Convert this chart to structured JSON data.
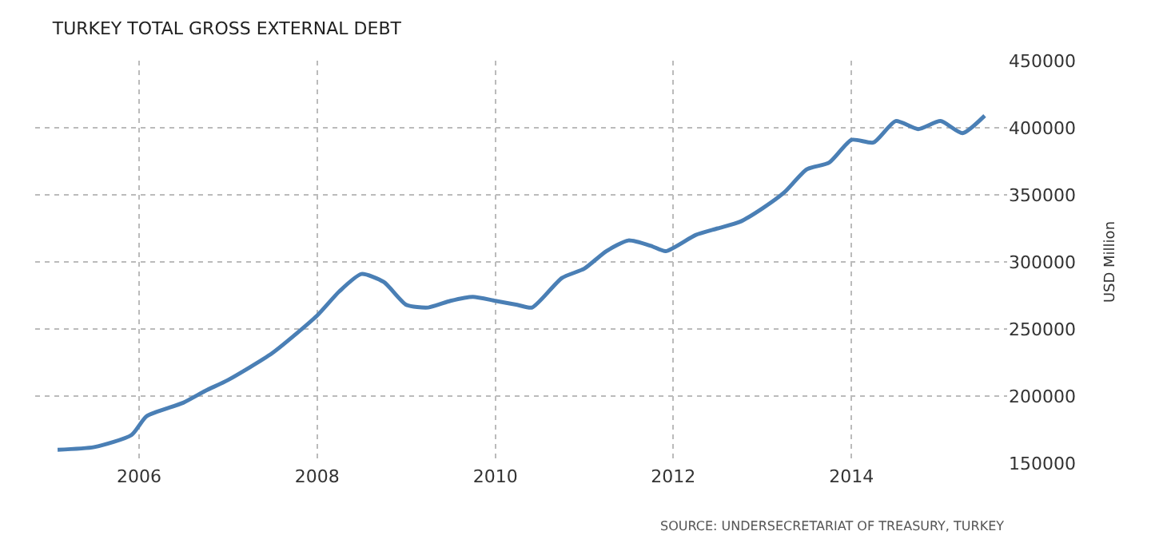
{
  "chart_data": {
    "type": "line",
    "title": "TURKEY TOTAL GROSS EXTERNAL DEBT",
    "ylabel": "USD Million",
    "annotations": [
      "SOURCE: UNDERSECRETARIAT OF TREASURY, TURKEY"
    ],
    "x": [
      "2005-02",
      "2005-07",
      "2005-12",
      "2006-02",
      "2006-07",
      "2006-10",
      "2007-01",
      "2007-07",
      "2008-01",
      "2008-04",
      "2008-07",
      "2008-10",
      "2009-01",
      "2009-04",
      "2009-07",
      "2009-10",
      "2010-01",
      "2010-04",
      "2010-06",
      "2010-10",
      "2011-01",
      "2011-04",
      "2011-07",
      "2011-10",
      "2011-12",
      "2012-04",
      "2012-07",
      "2012-10",
      "2013-01",
      "2013-04",
      "2013-07",
      "2013-10",
      "2014-01",
      "2014-04",
      "2014-07",
      "2014-10",
      "2015-01",
      "2015-04",
      "2015-07"
    ],
    "series": [
      {
        "color": "#4a7fb5",
        "values": [
          160000,
          162000,
          171000,
          185000,
          195000,
          204000,
          212000,
          232000,
          260000,
          278000,
          291000,
          285000,
          268000,
          266000,
          271000,
          274000,
          271000,
          268000,
          266000,
          288000,
          295000,
          308000,
          316000,
          312000,
          308000,
          320000,
          325000,
          330000,
          340000,
          352000,
          369000,
          374000,
          391000,
          389000,
          405000,
          399000,
          405000,
          396000,
          409000
        ]
      }
    ],
    "xlim": [
      "2004-11",
      "2015-10"
    ],
    "xticks": [
      "2006",
      "2008",
      "2010",
      "2012",
      "2014"
    ],
    "ylim": [
      150000,
      450000
    ],
    "yticks": [
      150000,
      200000,
      250000,
      300000,
      350000,
      400000,
      450000
    ],
    "grid": true,
    "line_style": "solid",
    "marker": "none"
  }
}
